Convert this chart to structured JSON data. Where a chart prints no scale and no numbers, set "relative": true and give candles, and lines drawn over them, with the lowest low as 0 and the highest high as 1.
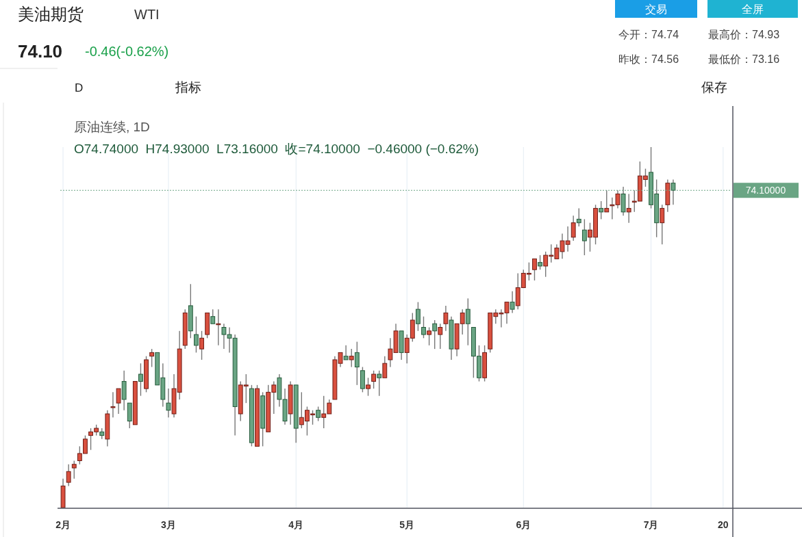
{
  "chart_data": {
    "type": "candlestick",
    "relative": true,
    "grid": "x",
    "tick_labels": "x",
    "title": "美油期货",
    "subtitle": "WTI",
    "annotations": [
      "74.10",
      "-0.46(-0.62%)",
      "交易",
      "全屏",
      "今开：74.74",
      "最高价：74.93",
      "昨收：74.56",
      "最低价：73.16",
      "D",
      "指标",
      "保存",
      "原油连续, 1D",
      "O74.74000  H74.93000  L73.16000  收=74.10000  −0.46000 (−0.62%)",
      "74.10000"
    ],
    "ref_lines": [
      {
        "axis": "y",
        "value": 0.88,
        "color": "#6aa584",
        "line_style": "dotted"
      }
    ],
    "categories": [
      "2月",
      null,
      null,
      null,
      null,
      null,
      null,
      null,
      null,
      null,
      null,
      null,
      null,
      null,
      null,
      null,
      null,
      null,
      null,
      "3月",
      null,
      null,
      null,
      null,
      null,
      null,
      null,
      null,
      null,
      null,
      null,
      null,
      null,
      null,
      null,
      null,
      null,
      null,
      null,
      null,
      null,
      null,
      "4月",
      null,
      null,
      null,
      null,
      null,
      null,
      null,
      null,
      null,
      null,
      null,
      null,
      null,
      null,
      null,
      null,
      null,
      null,
      null,
      "5月",
      null,
      null,
      null,
      null,
      null,
      null,
      null,
      null,
      null,
      null,
      null,
      null,
      null,
      null,
      null,
      null,
      null,
      null,
      null,
      null,
      "6月",
      null,
      null,
      null,
      null,
      null,
      null,
      null,
      null,
      null,
      null,
      null,
      null,
      null,
      null,
      null,
      null,
      null,
      null,
      null,
      null,
      null,
      null,
      "7月",
      null,
      null,
      null,
      null,
      null,
      null,
      null,
      null,
      null,
      null,
      null,
      null,
      "20",
      null
    ],
    "ohlc": [
      [
        0.0,
        0.08,
        0,
        0.06
      ],
      [
        0.07,
        0.12,
        0.06,
        0.1
      ],
      [
        0.11,
        0.13,
        0.08,
        0.12
      ],
      [
        0.13,
        0.17,
        0.12,
        0.15
      ],
      [
        0.15,
        0.2,
        0.15,
        0.19
      ],
      [
        0.2,
        0.22,
        0.16,
        0.21
      ],
      [
        0.21,
        0.23,
        0.2,
        0.22
      ],
      [
        0.21,
        0.22,
        0.19,
        0.2
      ],
      [
        0.19,
        0.27,
        0.17,
        0.26
      ],
      [
        0.28,
        0.32,
        0.25,
        0.28
      ],
      [
        0.29,
        0.33,
        0.26,
        0.33
      ],
      [
        0.35,
        0.38,
        0.27,
        0.3
      ],
      [
        0.29,
        0.29,
        0.22,
        0.24
      ],
      [
        0.23,
        0.35,
        0.23,
        0.35
      ],
      [
        0.37,
        0.4,
        0.31,
        0.35
      ],
      [
        0.33,
        0.42,
        0.32,
        0.41
      ],
      [
        0.42,
        0.44,
        0.39,
        0.43
      ],
      [
        0.43,
        0.43,
        0.34,
        0.34
      ],
      [
        0.36,
        0.4,
        0.28,
        0.3
      ],
      [
        0.29,
        0.33,
        0.25,
        0.27
      ],
      [
        0.26,
        0.37,
        0.25,
        0.33
      ],
      [
        0.32,
        0.49,
        0.3,
        0.44
      ],
      [
        0.45,
        0.55,
        0.44,
        0.54
      ],
      [
        0.56,
        0.62,
        0.47,
        0.49
      ],
      [
        0.48,
        0.53,
        0.43,
        0.45
      ],
      [
        0.44,
        0.49,
        0.41,
        0.47
      ],
      [
        0.48,
        0.54,
        0.47,
        0.54
      ],
      [
        0.53,
        0.55,
        0.51,
        0.51
      ],
      [
        0.51,
        0.55,
        0.45,
        0.51
      ],
      [
        0.5,
        0.51,
        0.44,
        0.48
      ],
      [
        0.48,
        0.5,
        0.43,
        0.47
      ],
      [
        0.47,
        0.48,
        0.2,
        0.28
      ],
      [
        0.26,
        0.35,
        0.24,
        0.34
      ],
      [
        0.34,
        0.37,
        0.29,
        0.34
      ],
      [
        0.33,
        0.34,
        0.17,
        0.18
      ],
      [
        0.17,
        0.34,
        0.17,
        0.33
      ],
      [
        0.31,
        0.32,
        0.17,
        0.22
      ],
      [
        0.21,
        0.34,
        0.21,
        0.32
      ],
      [
        0.32,
        0.35,
        0.26,
        0.34
      ],
      [
        0.36,
        0.37,
        0.28,
        0.3
      ],
      [
        0.3,
        0.33,
        0.23,
        0.24
      ],
      [
        0.26,
        0.35,
        0.23,
        0.34
      ],
      [
        0.34,
        0.34,
        0.18,
        0.22
      ],
      [
        0.23,
        0.32,
        0.22,
        0.25
      ],
      [
        0.24,
        0.28,
        0.2,
        0.27
      ],
      [
        0.26,
        0.27,
        0.23,
        0.26
      ],
      [
        0.27,
        0.28,
        0.24,
        0.25
      ],
      [
        0.25,
        0.31,
        0.22,
        0.26
      ],
      [
        0.26,
        0.3,
        0.26,
        0.29
      ],
      [
        0.3,
        0.42,
        0.3,
        0.41
      ],
      [
        0.4,
        0.43,
        0.39,
        0.43
      ],
      [
        0.42,
        0.45,
        0.41,
        0.41
      ],
      [
        0.41,
        0.44,
        0.39,
        0.42
      ],
      [
        0.43,
        0.46,
        0.34,
        0.39
      ],
      [
        0.38,
        0.39,
        0.32,
        0.33
      ],
      [
        0.33,
        0.36,
        0.31,
        0.34
      ],
      [
        0.35,
        0.38,
        0.33,
        0.37
      ],
      [
        0.37,
        0.38,
        0.31,
        0.36
      ],
      [
        0.36,
        0.42,
        0.36,
        0.4
      ],
      [
        0.41,
        0.47,
        0.39,
        0.44
      ],
      [
        0.43,
        0.51,
        0.43,
        0.49
      ],
      [
        0.49,
        0.49,
        0.41,
        0.43
      ],
      [
        0.43,
        0.48,
        0.4,
        0.47
      ],
      [
        0.47,
        0.54,
        0.46,
        0.52
      ],
      [
        0.55,
        0.57,
        0.49,
        0.51
      ],
      [
        0.5,
        0.53,
        0.47,
        0.48
      ],
      [
        0.48,
        0.5,
        0.45,
        0.49
      ],
      [
        0.51,
        0.52,
        0.44,
        0.49
      ],
      [
        0.48,
        0.51,
        0.44,
        0.5
      ],
      [
        0.51,
        0.56,
        0.49,
        0.54
      ],
      [
        0.52,
        0.53,
        0.41,
        0.44
      ],
      [
        0.44,
        0.51,
        0.42,
        0.51
      ],
      [
        0.51,
        0.55,
        0.48,
        0.54
      ],
      [
        0.55,
        0.58,
        0.45,
        0.51
      ],
      [
        0.5,
        0.5,
        0.36,
        0.42
      ],
      [
        0.42,
        0.45,
        0.35,
        0.36
      ],
      [
        0.36,
        0.45,
        0.35,
        0.43
      ],
      [
        0.44,
        0.54,
        0.43,
        0.54
      ],
      [
        0.53,
        0.55,
        0.51,
        0.54
      ],
      [
        0.54,
        0.55,
        0.5,
        0.54
      ],
      [
        0.54,
        0.57,
        0.51,
        0.57
      ],
      [
        0.57,
        0.6,
        0.54,
        0.55
      ],
      [
        0.56,
        0.65,
        0.55,
        0.61
      ],
      [
        0.61,
        0.66,
        0.61,
        0.65
      ],
      [
        0.65,
        0.68,
        0.63,
        0.65
      ],
      [
        0.66,
        0.69,
        0.63,
        0.69
      ],
      [
        0.68,
        0.7,
        0.66,
        0.67
      ],
      [
        0.67,
        0.71,
        0.64,
        0.7
      ],
      [
        0.7,
        0.73,
        0.68,
        0.7
      ],
      [
        0.69,
        0.73,
        0.69,
        0.72
      ],
      [
        0.71,
        0.76,
        0.69,
        0.74
      ],
      [
        0.73,
        0.78,
        0.71,
        0.74
      ],
      [
        0.75,
        0.81,
        0.74,
        0.79
      ],
      [
        0.8,
        0.83,
        0.78,
        0.79
      ],
      [
        0.77,
        0.8,
        0.7,
        0.74
      ],
      [
        0.75,
        0.79,
        0.71,
        0.77
      ],
      [
        0.75,
        0.84,
        0.73,
        0.83
      ],
      [
        0.83,
        0.85,
        0.8,
        0.82
      ],
      [
        0.82,
        0.88,
        0.82,
        0.83
      ],
      [
        0.84,
        0.86,
        0.8,
        0.84
      ],
      [
        0.84,
        0.88,
        0.83,
        0.87
      ],
      [
        0.87,
        0.89,
        0.81,
        0.82
      ],
      [
        0.82,
        0.87,
        0.79,
        0.83
      ],
      [
        0.85,
        0.88,
        0.82,
        0.85
      ],
      [
        0.85,
        0.96,
        0.85,
        0.92
      ],
      [
        0.91,
        0.94,
        0.89,
        0.92
      ],
      [
        0.93,
        1,
        0.83,
        0.84
      ],
      [
        0.87,
        0.91,
        0.75,
        0.79
      ],
      [
        0.79,
        0.84,
        0.73,
        0.83
      ],
      [
        0.84,
        0.91,
        0.82,
        0.9
      ],
      [
        0.9,
        0.91,
        0.84,
        0.88
      ],
      null,
      null,
      null,
      null,
      null,
      null,
      null,
      null,
      null,
      null
    ]
  }
}
